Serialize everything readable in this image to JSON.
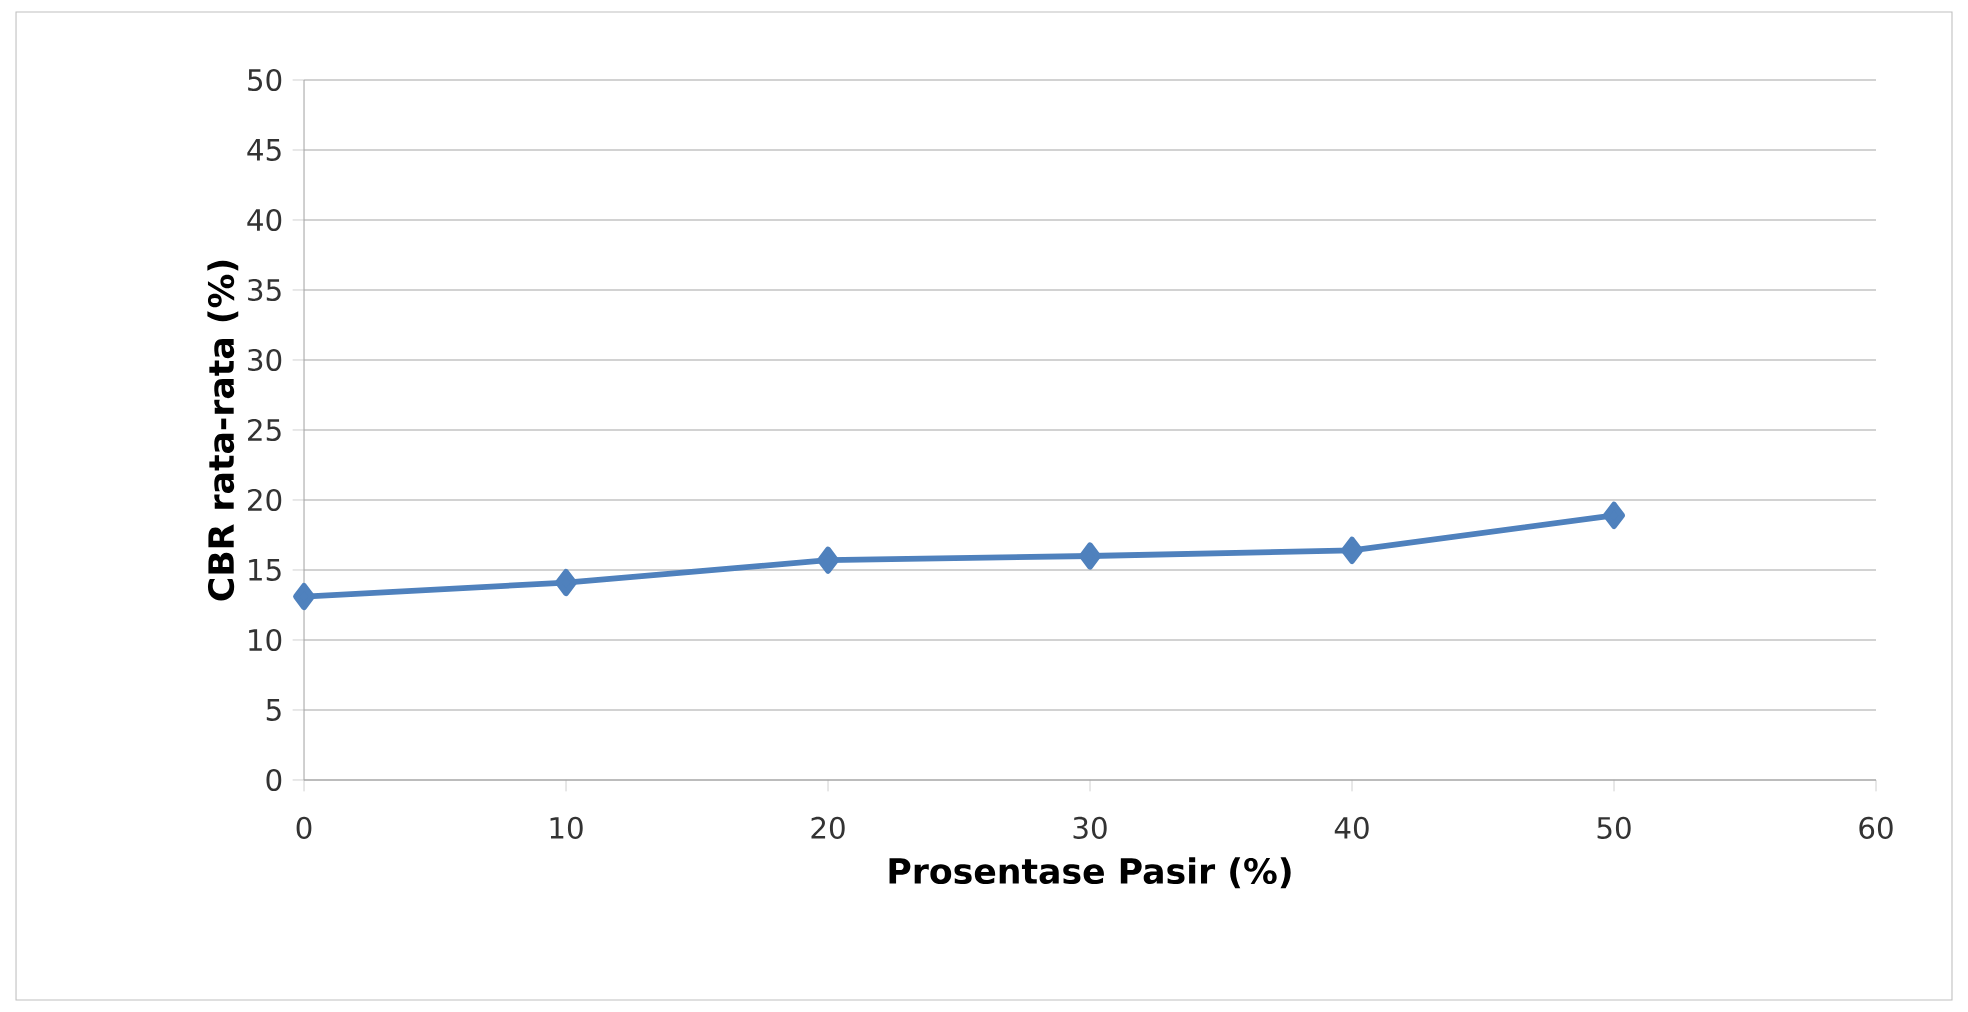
{
  "chart_data": {
    "type": "line",
    "xlabel": "Prosentase Pasir (%)",
    "ylabel": "CBR rata-rata (%)",
    "x": [
      0,
      10,
      20,
      30,
      40,
      50
    ],
    "series": [
      {
        "color": "#4f81bd",
        "values": [
          13.1,
          14.1,
          15.7,
          16.0,
          16.4,
          18.9
        ]
      }
    ],
    "xlim": [
      0,
      60
    ],
    "xticks": [
      0,
      10,
      20,
      30,
      40,
      50,
      60
    ],
    "ylim": [
      0,
      50
    ],
    "yticks": [
      0,
      5,
      10,
      15,
      20,
      25,
      30,
      35,
      40,
      45,
      50
    ],
    "grid": "y",
    "marker": "diamond",
    "line_style": "solid"
  }
}
